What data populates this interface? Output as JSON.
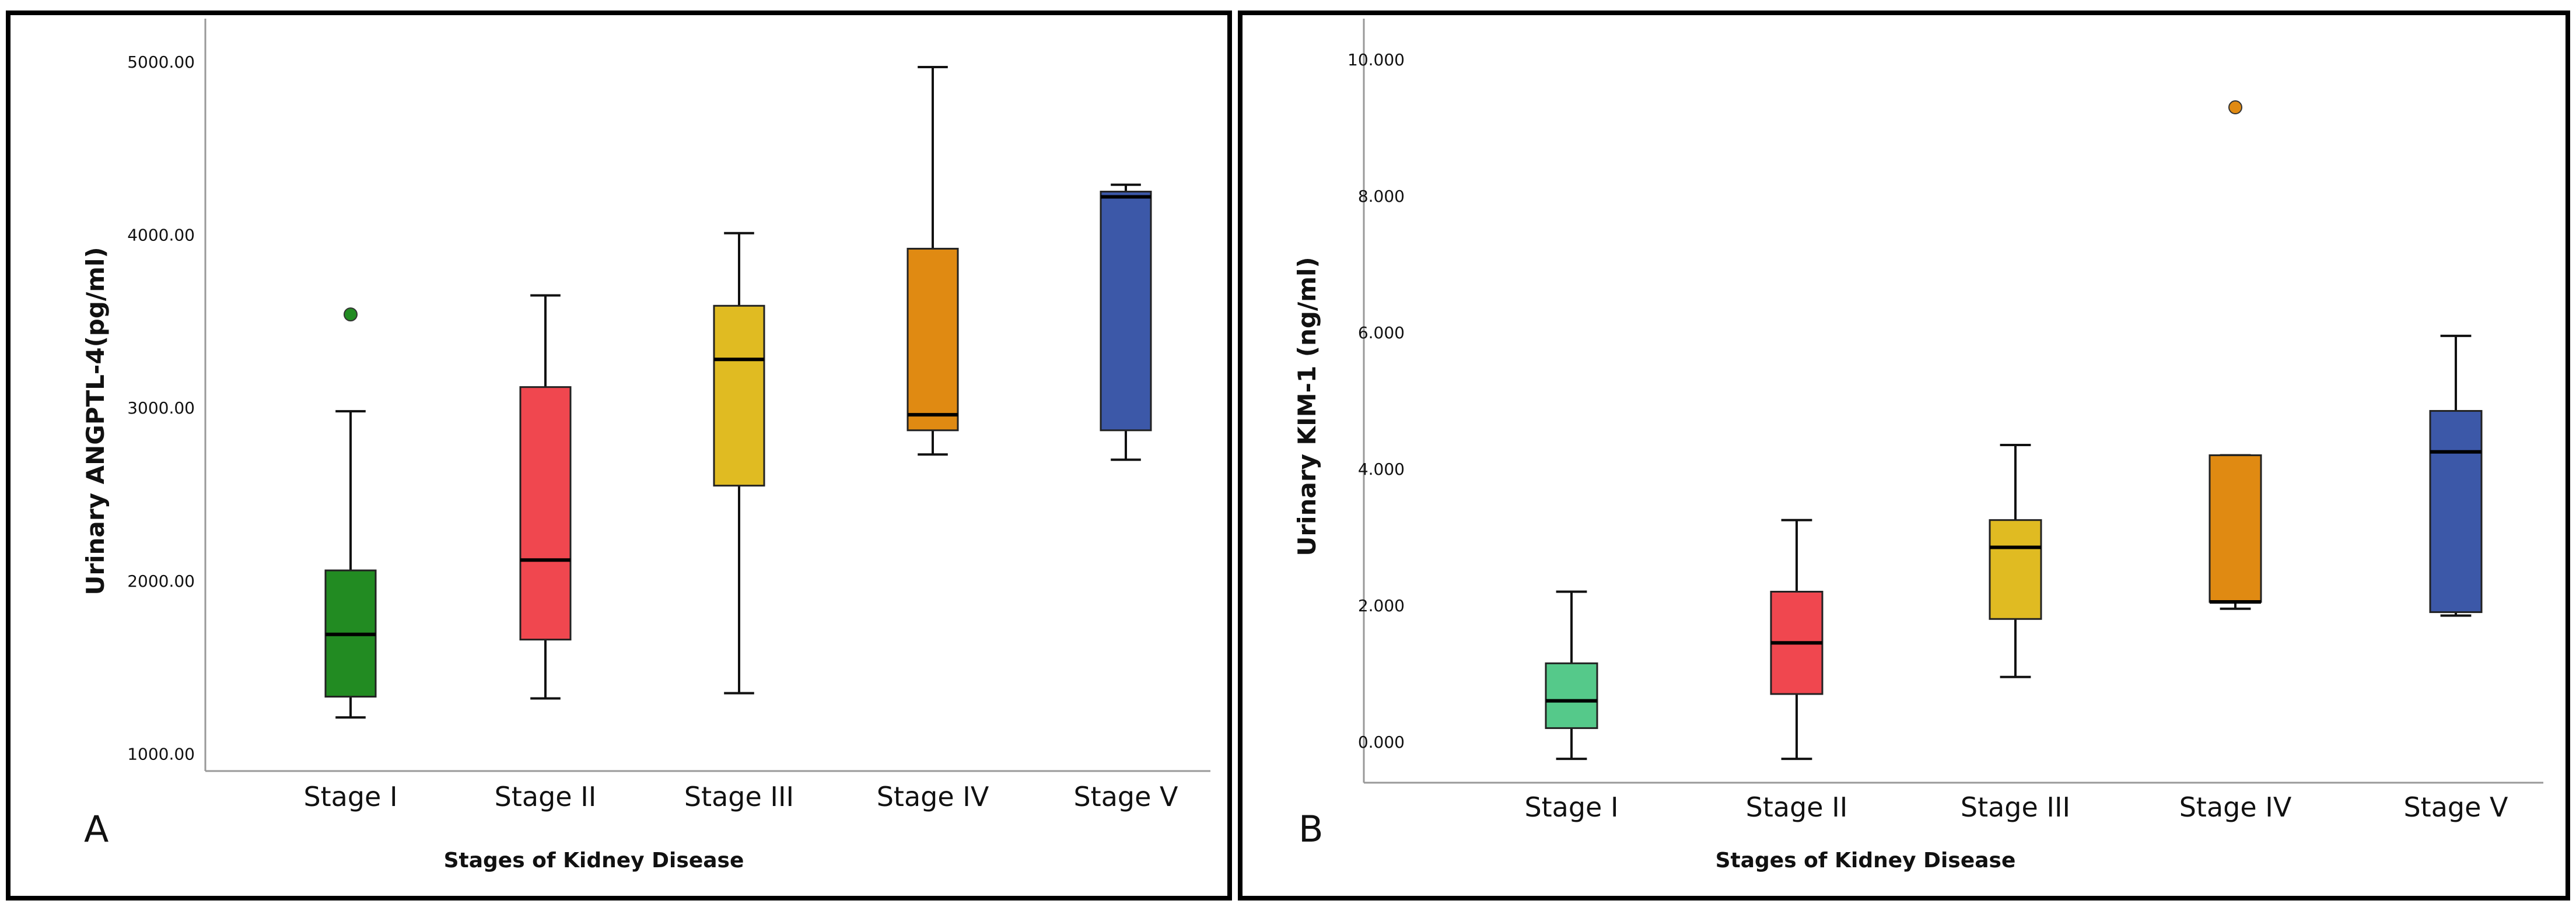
{
  "chart_data": [
    {
      "type": "boxplot",
      "panel_label": "A",
      "xlabel": "Stages of Kidney Disease",
      "ylabel": "Urinary ANGPTL-4(pg/ml)",
      "ylim": [
        900,
        5250
      ],
      "yticks": [
        1000,
        2000,
        3000,
        4000,
        5000
      ],
      "ytick_labels": [
        "1000.00",
        "2000.00",
        "3000.00",
        "4000.00",
        "5000.00"
      ],
      "categories": [
        "Stage I",
        "Stage II",
        "Stage III",
        "Stage IV",
        "Stage V"
      ],
      "colors": [
        "#228b22",
        "#f0474f",
        "#e0bb22",
        "#e08a12",
        "#3c58a8"
      ],
      "boxes": [
        {
          "min": 1210,
          "q1": 1330,
          "median": 1690,
          "q3": 2060,
          "max": 2980,
          "outliers": [
            3540
          ]
        },
        {
          "min": 1320,
          "q1": 1660,
          "median": 2120,
          "q3": 3120,
          "max": 3650,
          "outliers": []
        },
        {
          "min": 1350,
          "q1": 2550,
          "median": 3280,
          "q3": 3590,
          "max": 4010,
          "outliers": []
        },
        {
          "min": 2730,
          "q1": 2870,
          "median": 2960,
          "q3": 3920,
          "max": 4970,
          "outliers": []
        },
        {
          "min": 2700,
          "q1": 2870,
          "median": 4220,
          "q3": 4250,
          "max": 4290,
          "outliers": []
        }
      ]
    },
    {
      "type": "boxplot",
      "panel_label": "B",
      "xlabel": "Stages of Kidney Disease",
      "ylabel": "Urinary KIM-1 (ng/ml)",
      "ylim": [
        -0.6,
        10.6
      ],
      "yticks": [
        0,
        2,
        4,
        6,
        8,
        10
      ],
      "ytick_labels": [
        "0.000",
        "2.000",
        "4.000",
        "6.000",
        "8.000",
        "10.000"
      ],
      "categories": [
        "Stage I",
        "Stage II",
        "Stage III",
        "Stage IV",
        "Stage V"
      ],
      "colors": [
        "#55c98a",
        "#f0474f",
        "#e0bb22",
        "#e08a12",
        "#3c58a8"
      ],
      "boxes": [
        {
          "min": -0.25,
          "q1": 0.2,
          "median": 0.6,
          "q3": 1.15,
          "max": 2.2,
          "outliers": []
        },
        {
          "min": -0.25,
          "q1": 0.7,
          "median": 1.45,
          "q3": 2.2,
          "max": 3.25,
          "outliers": []
        },
        {
          "min": 0.95,
          "q1": 1.8,
          "median": 2.85,
          "q3": 3.25,
          "max": 4.35,
          "outliers": []
        },
        {
          "min": 1.95,
          "q1": 2.05,
          "median": 2.05,
          "q3": 4.2,
          "max": 4.2,
          "outliers": [
            9.3
          ]
        },
        {
          "min": 1.85,
          "q1": 1.9,
          "median": 4.25,
          "q3": 4.85,
          "max": 5.95,
          "outliers": []
        }
      ]
    }
  ]
}
